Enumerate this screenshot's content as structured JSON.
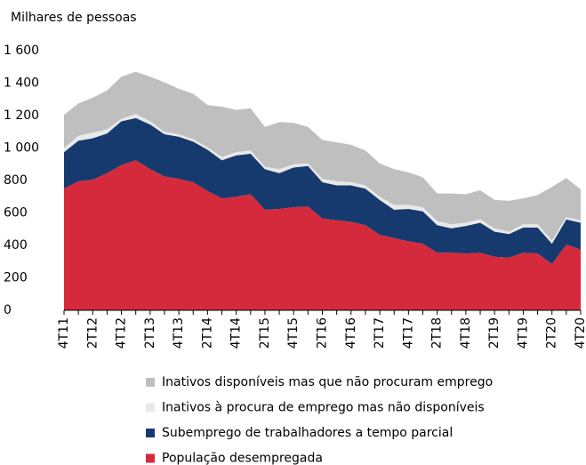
{
  "chart_data": {
    "type": "stacked-area",
    "y_label": "Milhares de pessoas",
    "categories": [
      "4T11",
      null,
      "2T12",
      null,
      "4T12",
      null,
      "2T13",
      null,
      "4T13",
      null,
      "2T14",
      null,
      "4T14",
      null,
      "2T15",
      null,
      "4T15",
      null,
      "2T16",
      null,
      "4T16",
      null,
      "2T17",
      null,
      "4T17",
      null,
      "2T18",
      null,
      "4T18",
      null,
      "2T19",
      null,
      "4T19",
      null,
      "2T20",
      null,
      "4T20"
    ],
    "ylim": [
      0,
      1600
    ],
    "yticks": [
      0,
      200,
      400,
      600,
      800,
      {
        "value": 1000,
        "label": "1 000"
      },
      {
        "value": 1200,
        "label": "1 200"
      },
      {
        "value": 1400,
        "label": "1 400"
      },
      {
        "value": 1600,
        "label": "1 600"
      }
    ],
    "series": [
      {
        "name": "População desempregada",
        "color": "#d52a3b",
        "values": [
          750,
          795,
          805,
          845,
          895,
          925,
          870,
          825,
          810,
          790,
          735,
          690,
          700,
          715,
          620,
          625,
          635,
          640,
          565,
          555,
          545,
          525,
          465,
          445,
          425,
          410,
          355,
          355,
          350,
          355,
          330,
          325,
          355,
          350,
          285,
          405,
          375
        ]
      },
      {
        "name": "Subemprego de trabalhadores a tempo parcial",
        "color": "#173a6e",
        "values": [
          225,
          250,
          255,
          245,
          270,
          260,
          275,
          260,
          260,
          250,
          255,
          235,
          255,
          250,
          250,
          220,
          245,
          250,
          225,
          215,
          225,
          225,
          215,
          175,
          200,
          200,
          170,
          150,
          170,
          185,
          155,
          145,
          155,
          160,
          125,
          155,
          165
        ]
      },
      {
        "name": "Inativos à procura de emprego mas não disponíveis",
        "color": "#e9e9e9",
        "values": [
          25,
          30,
          35,
          25,
          15,
          25,
          20,
          15,
          15,
          15,
          15,
          20,
          20,
          20,
          15,
          25,
          20,
          15,
          20,
          25,
          20,
          20,
          20,
          30,
          25,
          25,
          25,
          25,
          20,
          20,
          20,
          15,
          20,
          20,
          20,
          15,
          15
        ]
      },
      {
        "name": "Inativos disponíveis mas que não procuram emprego",
        "color": "#bfbfbf",
        "values": [
          205,
          200,
          215,
          240,
          260,
          260,
          275,
          305,
          280,
          280,
          260,
          310,
          260,
          260,
          245,
          290,
          255,
          225,
          240,
          240,
          230,
          215,
          205,
          220,
          200,
          185,
          170,
          190,
          175,
          180,
          175,
          190,
          160,
          180,
          330,
          240,
          190
        ]
      }
    ]
  }
}
